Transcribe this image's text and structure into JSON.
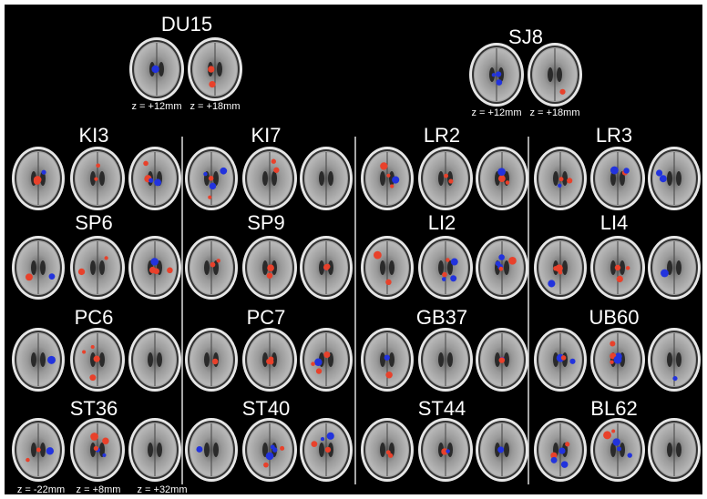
{
  "top_panels": [
    {
      "label": "DU15",
      "z_labels": [
        "z = +12mm",
        "z = +18mm"
      ]
    },
    {
      "label": "SJ8",
      "z_labels": [
        "z = +12mm",
        "z = +18mm"
      ]
    }
  ],
  "panels": [
    "KI3",
    "KI7",
    "LR2",
    "LR3",
    "SP6",
    "SP9",
    "LI2",
    "LI4",
    "PC6",
    "PC7",
    "GB37",
    "UB60",
    "ST36",
    "ST40",
    "ST44",
    "BL62"
  ],
  "bottom_z_labels": [
    "z = -22mm",
    "z = +8mm",
    "z = +32mm"
  ]
}
